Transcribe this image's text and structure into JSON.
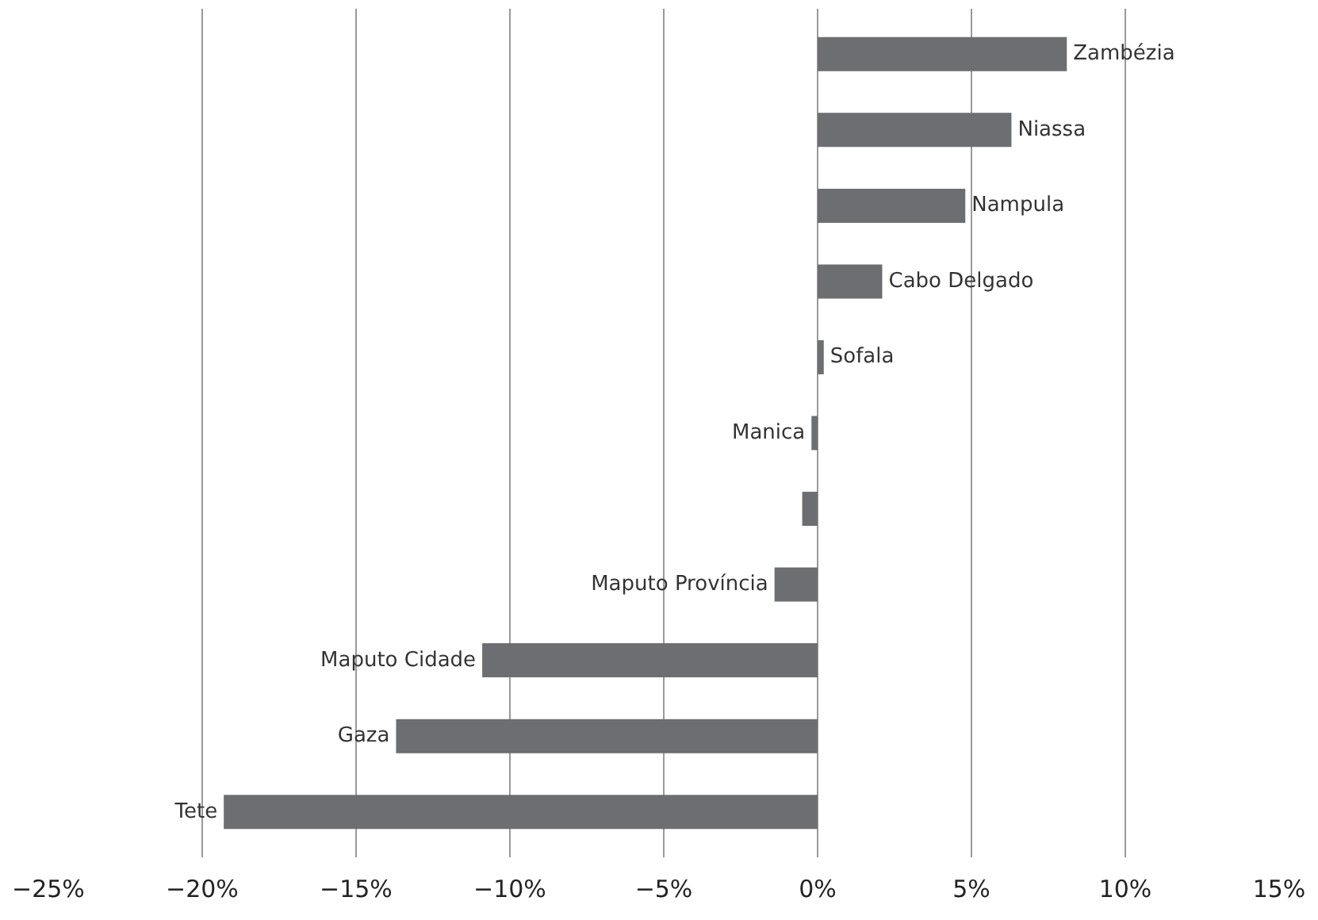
{
  "chart_data": {
    "type": "bar",
    "orientation": "horizontal",
    "categories": [
      "Zambézia",
      "Niassa",
      "Nampula",
      "Cabo Delgado",
      "Sofala",
      "Manica",
      null,
      "Maputo Província",
      "Maputo Cidade",
      "Gaza",
      "Tete"
    ],
    "values": [
      8.1,
      6.3,
      4.8,
      2.1,
      0.2,
      -0.2,
      -0.5,
      -1.4,
      -10.9,
      -13.7,
      -19.3
    ],
    "color": "#6d6e71",
    "xlim": [
      -25,
      15
    ],
    "xticks": [
      {
        "value": -25,
        "label": "−25%"
      },
      {
        "value": -20,
        "label": "−20%"
      },
      {
        "value": -15,
        "label": "−15%"
      },
      {
        "value": -10,
        "label": "−10%"
      },
      {
        "value": -5,
        "label": "−5%"
      },
      {
        "value": 0,
        "label": "0%"
      },
      {
        "value": 5,
        "label": "5%"
      },
      {
        "value": 10,
        "label": "10%"
      },
      {
        "value": 15,
        "label": "15%"
      }
    ],
    "grid": "x",
    "tick_labels": "x"
  }
}
